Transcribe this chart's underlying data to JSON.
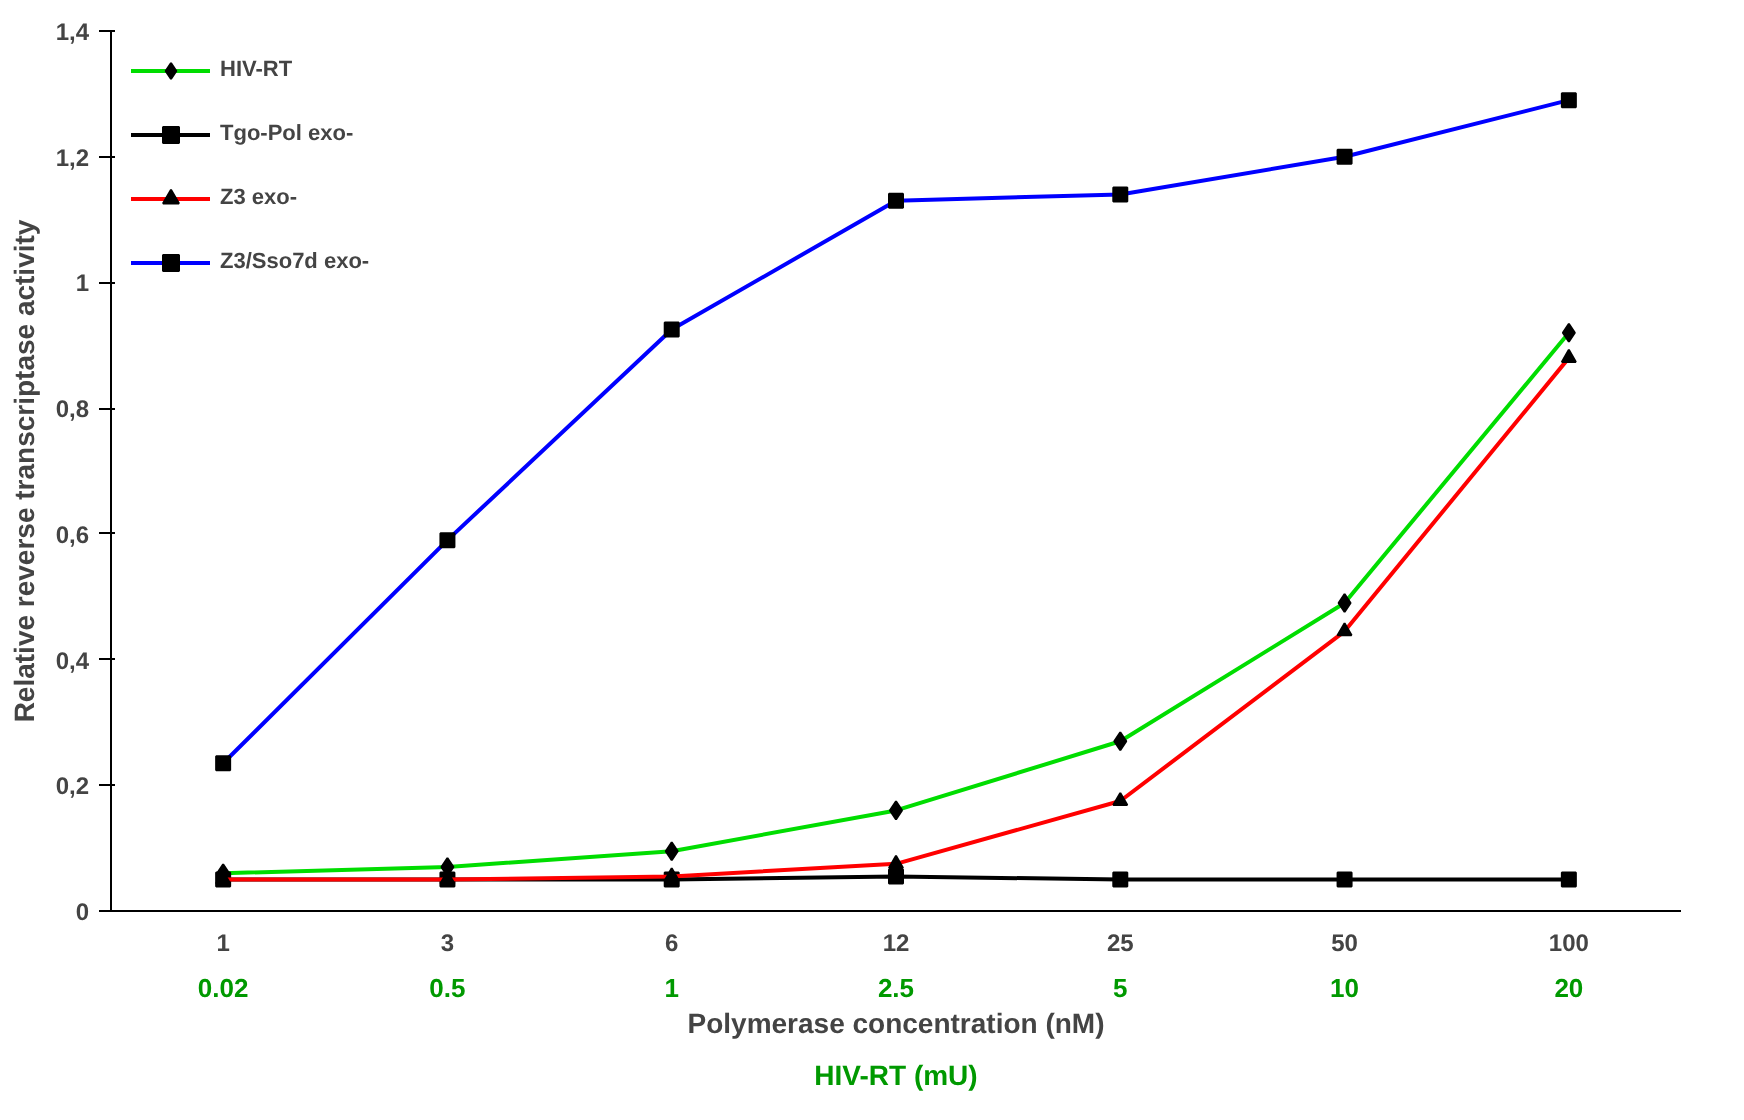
{
  "chart_data": {
    "type": "line",
    "xlabel": "Polymerase concentration (nM)",
    "ylabel": "Relative reverse transcriptase activity",
    "x2label": "HIV-RT (mU)",
    "categories": [
      "1",
      "3",
      "6",
      "12",
      "25",
      "50",
      "100"
    ],
    "annotations": [
      "0.02",
      "0.5",
      "1",
      "2.5",
      "5",
      "10",
      "20"
    ],
    "ylim": [
      0,
      1.4
    ],
    "yticks": [
      0,
      {
        "value": 0.2,
        "label": "0,2"
      },
      {
        "value": 0.4,
        "label": "0,4"
      },
      {
        "value": 0.6,
        "label": "0,6"
      },
      {
        "value": 0.8,
        "label": "0,8"
      },
      {
        "value": 1,
        "label": "1"
      },
      {
        "value": 1.2,
        "label": "1,2"
      },
      {
        "value": 1.4,
        "label": "1,4"
      }
    ],
    "grid": false,
    "legend": "top left",
    "series": [
      {
        "name": "HIV-RT",
        "color": "#00dd00",
        "marker": "diamond",
        "values": [
          0.06,
          0.07,
          0.095,
          0.16,
          0.27,
          0.49,
          0.92
        ]
      },
      {
        "name": "Tgo-Pol exo-",
        "color": "#000000",
        "marker": "square",
        "values": [
          0.05,
          0.05,
          0.05,
          0.055,
          0.05,
          0.05,
          0.05
        ]
      },
      {
        "name": "Z3 exo-",
        "color": "#ff0000",
        "marker": "triangle",
        "values": [
          0.05,
          0.05,
          0.055,
          0.075,
          0.175,
          0.445,
          0.88
        ]
      },
      {
        "name": "Z3/Sso7d exo-",
        "color": "#0000ff",
        "marker": "square",
        "values": [
          0.235,
          0.59,
          0.925,
          1.13,
          1.14,
          1.2,
          1.29
        ]
      }
    ]
  }
}
